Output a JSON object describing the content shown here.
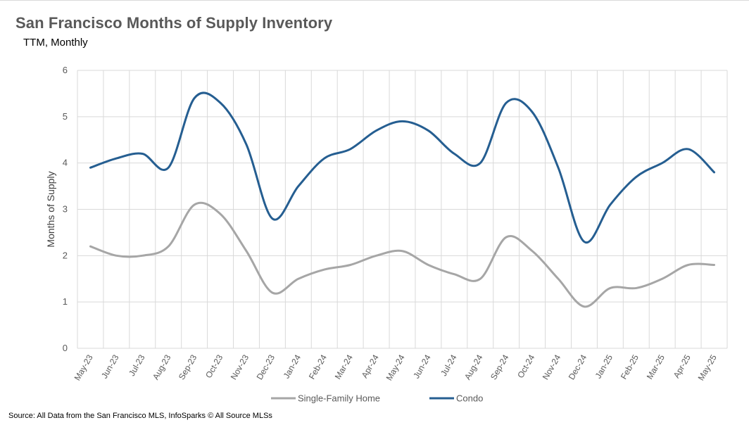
{
  "title": "San Francisco Months of Supply Inventory",
  "subtitle": "TTM, Monthly",
  "source": "Source: All Data from the San Francisco MLS, InfoSparks © All Source MLSs",
  "chart_data": {
    "type": "line",
    "title": "San Francisco Months of Supply Inventory",
    "subtitle": "TTM, Monthly",
    "xlabel": "",
    "ylabel": "Months of Supply",
    "ylim": [
      0,
      6
    ],
    "yticks": [
      0,
      1,
      2,
      3,
      4,
      5,
      6
    ],
    "grid": true,
    "legend_position": "bottom",
    "categories": [
      "May-23",
      "Jun-23",
      "Jul-23",
      "Aug-23",
      "Sep-23",
      "Oct-23",
      "Nov-23",
      "Dec-23",
      "Jan-24",
      "Feb-24",
      "Mar-24",
      "Apr-24",
      "May-24",
      "Jun-24",
      "Jul-24",
      "Aug-24",
      "Sep-24",
      "Oct-24",
      "Nov-24",
      "Dec-24",
      "Jan-25",
      "Feb-25",
      "Mar-25",
      "Apr-25",
      "May-25"
    ],
    "series": [
      {
        "name": "Single-Family Home",
        "color": "#a6a6a6",
        "values": [
          2.2,
          2.0,
          2.0,
          2.2,
          3.1,
          2.9,
          2.1,
          1.2,
          1.5,
          1.7,
          1.8,
          2.0,
          2.1,
          1.8,
          1.6,
          1.5,
          2.4,
          2.1,
          1.5,
          0.9,
          1.3,
          1.3,
          1.5,
          1.8,
          1.8
        ]
      },
      {
        "name": "Condo",
        "color": "#255e91",
        "values": [
          3.9,
          4.1,
          4.2,
          3.9,
          5.4,
          5.3,
          4.4,
          2.8,
          3.5,
          4.1,
          4.3,
          4.7,
          4.9,
          4.7,
          4.2,
          4.0,
          5.3,
          5.1,
          3.9,
          2.3,
          3.1,
          3.7,
          4.0,
          4.3,
          3.8
        ]
      }
    ]
  }
}
